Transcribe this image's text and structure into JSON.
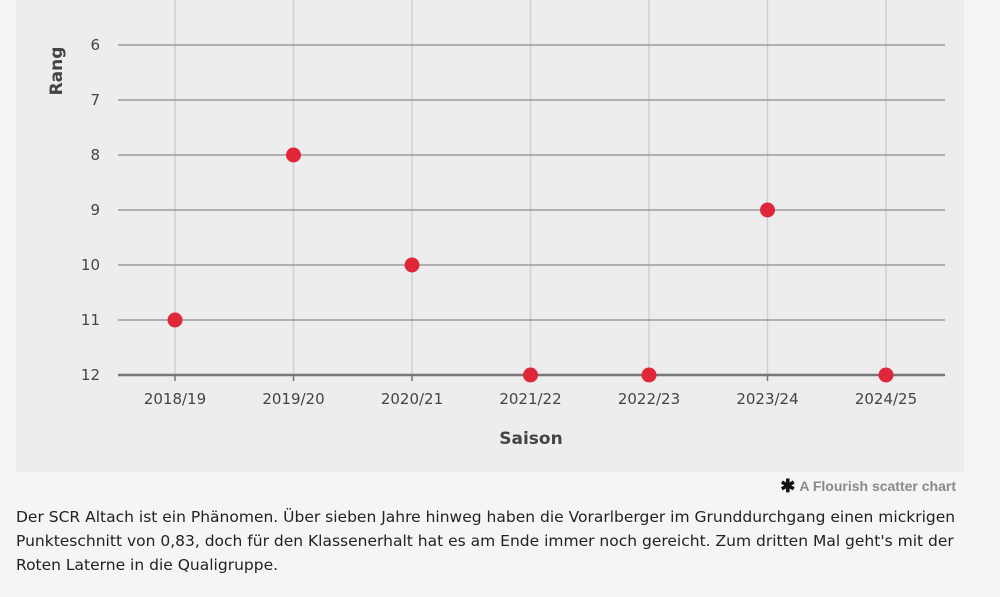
{
  "chart_data": {
    "type": "scatter",
    "xlabel": "Saison",
    "ylabel": "Rang",
    "categories": [
      "2018/19",
      "2019/20",
      "2020/21",
      "2021/22",
      "2022/23",
      "2023/24",
      "2024/25"
    ],
    "y_ticks": [
      6,
      7,
      8,
      9,
      10,
      11,
      12
    ],
    "ylim": [
      12,
      6
    ],
    "y_inverted": true,
    "grid": true,
    "series": [
      {
        "values": [
          11,
          8,
          10,
          12,
          12,
          9,
          12
        ]
      }
    ]
  },
  "colors": {
    "point": "#e0273a",
    "grid_horizontal": "#8c8c8c",
    "grid_vertical": "#d0d0d0",
    "panel_background": "#ededed"
  },
  "credit": {
    "icon": "asterisk-icon",
    "icon_glyph": "✱",
    "text": "A Flourish scatter chart"
  },
  "caption": "Der SCR Altach ist ein Phänomen. Über sieben Jahre hinweg haben die Vorarlberger im Grunddurchgang einen mickrigen Punkteschnitt von 0,83, doch für den Klassenerhalt hat es am Ende immer noch gereicht. Zum dritten Mal geht's mit der Roten Laterne in die Qualigruppe."
}
